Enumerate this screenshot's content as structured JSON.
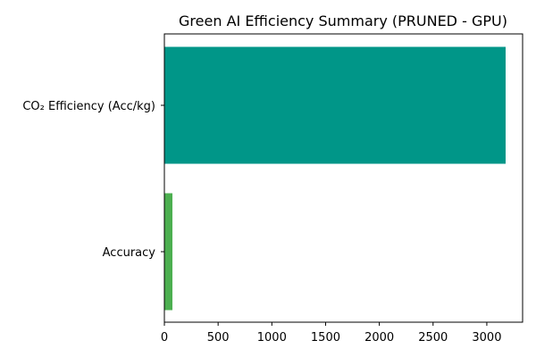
{
  "chart_data": {
    "type": "bar",
    "orientation": "horizontal",
    "title": "Green AI Efficiency Summary (PRUNED - GPU)",
    "xlabel": "",
    "ylabel": "",
    "categories": [
      "CO₂ Efficiency (Acc/kg)",
      "Accuracy"
    ],
    "values": [
      3175,
      75
    ],
    "colors": [
      "#009688",
      "#4CAF50"
    ],
    "xlim": [
      0,
      3333
    ],
    "xticks": [
      0,
      500,
      1000,
      1500,
      2000,
      2500,
      3000
    ],
    "grid": false
  }
}
